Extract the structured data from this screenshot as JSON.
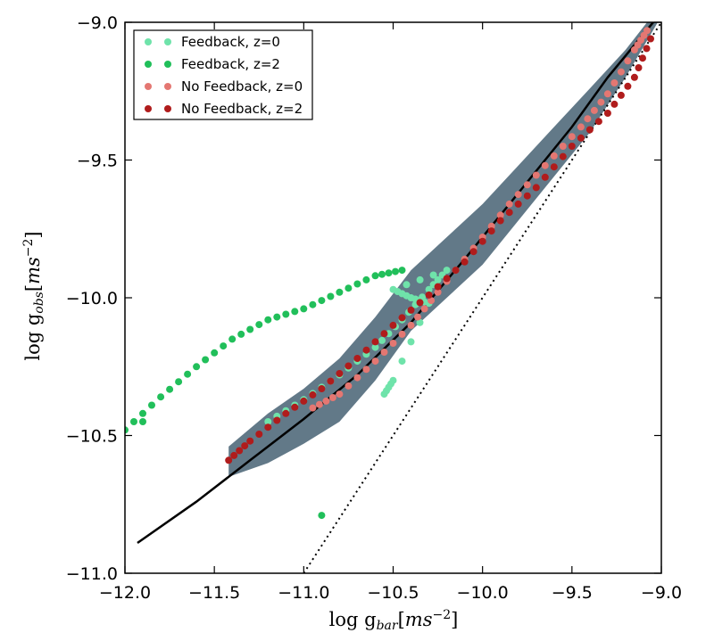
{
  "chart_data": {
    "type": "scatter",
    "xlabel": "log g_bar[ms^-2]",
    "ylabel": "log g_obs[ms^-2]",
    "xlim": [
      -12.0,
      -9.0
    ],
    "ylim": [
      -11.0,
      -9.0
    ],
    "x_ticks": [
      "−12.0",
      "−11.5",
      "−11.0",
      "−10.5",
      "−10.0",
      "−9.5",
      "−9.0"
    ],
    "y_ticks": [
      "−11.0",
      "−10.5",
      "−10.0",
      "−9.5",
      "−9.0"
    ],
    "legend_position": "top-left",
    "grid": false,
    "band": {
      "color": "#5a7282",
      "upper": [
        [
          -11.42,
          -10.54
        ],
        [
          -11.2,
          -10.42
        ],
        [
          -11.0,
          -10.33
        ],
        [
          -10.8,
          -10.22
        ],
        [
          -10.6,
          -10.07
        ],
        [
          -10.4,
          -9.9
        ],
        [
          -10.2,
          -9.78
        ],
        [
          -10.0,
          -9.66
        ],
        [
          -9.8,
          -9.52
        ],
        [
          -9.6,
          -9.38
        ],
        [
          -9.4,
          -9.24
        ],
        [
          -9.2,
          -9.1
        ],
        [
          -9.08,
          -9.0
        ]
      ],
      "lower": [
        [
          -9.02,
          -9.0
        ],
        [
          -9.2,
          -9.2
        ],
        [
          -9.4,
          -9.4
        ],
        [
          -9.6,
          -9.56
        ],
        [
          -9.8,
          -9.72
        ],
        [
          -10.0,
          -9.88
        ],
        [
          -10.2,
          -10.0
        ],
        [
          -10.4,
          -10.12
        ],
        [
          -10.6,
          -10.3
        ],
        [
          -10.8,
          -10.45
        ],
        [
          -11.0,
          -10.53
        ],
        [
          -11.2,
          -10.6
        ],
        [
          -11.42,
          -10.65
        ]
      ]
    },
    "lines": [
      {
        "style": "solid",
        "color": "#000000",
        "points": [
          [
            -11.93,
            -10.89
          ],
          [
            -11.6,
            -10.74
          ],
          [
            -11.3,
            -10.59
          ],
          [
            -11.0,
            -10.44
          ],
          [
            -10.7,
            -10.28
          ],
          [
            -10.4,
            -10.09
          ],
          [
            -10.1,
            -9.86
          ],
          [
            -9.8,
            -9.62
          ],
          [
            -9.5,
            -9.38
          ],
          [
            -9.3,
            -9.2
          ],
          [
            -9.02,
            -8.98
          ]
        ]
      },
      {
        "style": "dotted",
        "color": "#000000",
        "points": [
          [
            -11.0,
            -11.0
          ],
          [
            -9.0,
            -9.0
          ]
        ]
      }
    ],
    "series": [
      {
        "name": "Feedback, z=0",
        "color": "#6fe3aa",
        "points": [
          [
            -11.2,
            -10.45
          ],
          [
            -11.0,
            -10.37
          ],
          [
            -10.8,
            -10.28
          ],
          [
            -10.6,
            -10.18
          ],
          [
            -10.45,
            -10.08
          ],
          [
            -10.3,
            -9.97
          ],
          [
            -10.2,
            -9.9
          ],
          [
            -10.5,
            -9.97
          ],
          [
            -10.4,
            -10.0
          ],
          [
            -10.3,
            -10.02
          ],
          [
            -10.5,
            -10.3
          ],
          [
            -10.55,
            -10.35
          ]
        ]
      },
      {
        "name": "Feedback, z=2",
        "color": "#21bf5a",
        "points": [
          [
            -12.0,
            -10.48
          ],
          [
            -11.8,
            -10.36
          ],
          [
            -11.6,
            -10.25
          ],
          [
            -11.4,
            -10.15
          ],
          [
            -11.2,
            -10.08
          ],
          [
            -11.0,
            -10.04
          ],
          [
            -10.8,
            -9.98
          ],
          [
            -10.6,
            -9.92
          ],
          [
            -10.45,
            -9.9
          ],
          [
            -11.9,
            -10.45
          ],
          [
            -10.9,
            -10.79
          ]
        ]
      },
      {
        "name": "No Feedback, z=0",
        "color": "#e47772",
        "points": [
          [
            -10.95,
            -10.4
          ],
          [
            -10.8,
            -10.35
          ],
          [
            -10.6,
            -10.23
          ],
          [
            -10.4,
            -10.1
          ],
          [
            -10.25,
            -9.98
          ],
          [
            -10.05,
            -9.82
          ],
          [
            -9.85,
            -9.66
          ],
          [
            -9.65,
            -9.52
          ],
          [
            -9.45,
            -9.38
          ],
          [
            -9.3,
            -9.26
          ],
          [
            -9.15,
            -9.1
          ],
          [
            -9.08,
            -9.03
          ]
        ]
      },
      {
        "name": "No Feedback, z=2",
        "color": "#b01c1c",
        "points": [
          [
            -11.42,
            -10.59
          ],
          [
            -11.3,
            -10.52
          ],
          [
            -11.1,
            -10.42
          ],
          [
            -10.9,
            -10.33
          ],
          [
            -10.7,
            -10.22
          ],
          [
            -10.5,
            -10.1
          ],
          [
            -10.3,
            -9.99
          ],
          [
            -10.1,
            -9.87
          ],
          [
            -9.9,
            -9.72
          ],
          [
            -9.7,
            -9.6
          ],
          [
            -9.5,
            -9.45
          ],
          [
            -9.3,
            -9.33
          ],
          [
            -9.15,
            -9.2
          ],
          [
            -9.06,
            -9.06
          ]
        ]
      }
    ]
  }
}
